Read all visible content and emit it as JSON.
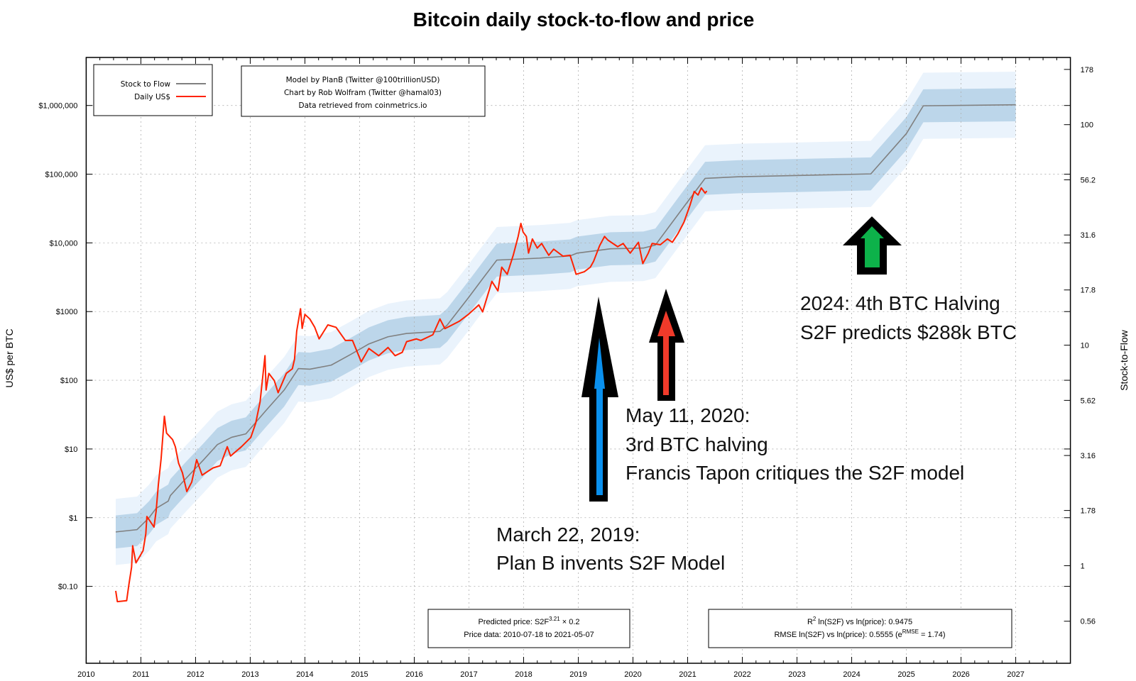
{
  "title": "Bitcoin daily stock-to-flow and price",
  "legend": {
    "model_label": "Stock to Flow",
    "price_label": "Daily US$"
  },
  "credits": [
    "Model by PlanB (Twitter @100trillionUSD)",
    "Chart by Rob Wolfram (Twitter @hamal03)",
    "Data retrieved from coinmetrics.io"
  ],
  "formula_box": {
    "line1_prefix": "Predicted price: S2F",
    "line1_sup": "3.21",
    "line1_suffix": " × 0.2",
    "line2": "Price data: 2010-07-18 to 2021-05-07"
  },
  "stats_box": {
    "line1_prefix": "R",
    "line1_sup": "2",
    "line1_suffix": " ln(S2F) vs ln(price): 0.9475",
    "line2_prefix": "RMSE ln(S2F) vs ln(price): 0.5555 (e",
    "line2_sup": "RMSE",
    "line2_suffix": " = 1.74)"
  },
  "annotations": {
    "halving_2024": [
      "2024: 4th BTC Halving",
      "S2F predicts $288k BTC"
    ],
    "halving_2020": [
      "May 11, 2020:",
      "3rd BTC halving",
      "Francis Tapon critiques the S2F model"
    ],
    "invented_2019": [
      "March 22, 2019:",
      "Plan B invents S2F Model"
    ]
  },
  "colors": {
    "model": "#808080",
    "price": "#ff2200",
    "band_inner": "#bcd6ea",
    "band_outer": "#eaf3fc",
    "arrow_blue": "#0a90ee",
    "arrow_red": "#f03a2a",
    "arrow_green": "#0db24a",
    "grid": "#b0b0b0"
  },
  "chart_data": {
    "type": "line",
    "title": "Bitcoin daily stock-to-flow and price",
    "xlabel": "",
    "ylabel": "US$ per BTC",
    "y2label": "Stock-to-Flow",
    "xlim": [
      2010,
      2028
    ],
    "ylim": [
      0.0076,
      5000000
    ],
    "yscale": "log",
    "grid": true,
    "legend": "top-left",
    "x_ticks": [
      "2010",
      "2011",
      "2012",
      "2013",
      "2014",
      "2015",
      "2016",
      "2017",
      "2018",
      "2019",
      "2020",
      "2021",
      "2022",
      "2023",
      "2024",
      "2025",
      "2026",
      "2027"
    ],
    "y_ticks": [
      {
        "value": 1000000,
        "label": "$1,000,000"
      },
      {
        "value": 100000,
        "label": "$100,000"
      },
      {
        "value": 10000,
        "label": "$10,000"
      },
      {
        "value": 1000,
        "label": "$1000"
      },
      {
        "value": 100,
        "label": "$100"
      },
      {
        "value": 10,
        "label": "$10"
      },
      {
        "value": 1,
        "label": "$1"
      },
      {
        "value": 0.1,
        "label": "$0.10"
      }
    ],
    "y2_ticks": [
      "178",
      "100",
      "56.2",
      "31.6",
      "17.8",
      "10",
      "5.62",
      "3.16",
      "1.78",
      "1",
      "0.56"
    ],
    "model_params": {
      "exponent": 3.21,
      "multiplier": 0.2,
      "e_rmse": 1.74
    },
    "series": [
      {
        "name": "Stock to Flow",
        "x": [
          2010.54,
          2010.93,
          2011.15,
          2011.28,
          2011.5,
          2011.54,
          2011.8,
          2012.15,
          2012.4,
          2012.66,
          2012.92,
          2013.27,
          2013.62,
          2013.88,
          2014.09,
          2014.48,
          2014.83,
          2015.17,
          2015.52,
          2015.86,
          2016.47,
          2016.6,
          2016.99,
          2017.25,
          2017.51,
          2018.29,
          2018.85,
          2018.98,
          2019.59,
          2020.19,
          2020.41,
          2020.88,
          2021.32,
          2021.92,
          2024.35,
          2025.0,
          2025.31,
          2027.0
        ],
        "y": [
          0.62,
          0.67,
          1.0,
          1.37,
          1.74,
          2.1,
          3.55,
          7,
          11.6,
          14.8,
          16.6,
          35,
          72,
          148,
          145,
          166,
          236,
          338,
          430,
          480,
          515,
          633,
          1590,
          3000,
          5620,
          6000,
          6460,
          7100,
          8200,
          8400,
          9300,
          29700,
          87000,
          91600,
          101000,
          390000,
          990000,
          1025000
        ]
      },
      {
        "name": "Daily US$",
        "x": [
          2010.54,
          2010.57,
          2010.74,
          2010.78,
          2010.83,
          2010.85,
          2010.91,
          2011.04,
          2011.09,
          2011.11,
          2011.24,
          2011.28,
          2011.32,
          2011.37,
          2011.43,
          2011.47,
          2011.58,
          2011.63,
          2011.69,
          2011.76,
          2011.84,
          2011.93,
          2012.02,
          2012.12,
          2012.32,
          2012.45,
          2012.58,
          2012.64,
          2012.84,
          2013.01,
          2013.1,
          2013.18,
          2013.27,
          2013.29,
          2013.34,
          2013.44,
          2013.51,
          2013.66,
          2013.77,
          2013.81,
          2013.85,
          2013.92,
          2013.95,
          2014.0,
          2014.09,
          2014.18,
          2014.26,
          2014.42,
          2014.57,
          2014.74,
          2014.87,
          2015.03,
          2015.17,
          2015.35,
          2015.52,
          2015.65,
          2015.78,
          2015.86,
          2016.04,
          2016.12,
          2016.34,
          2016.47,
          2016.56,
          2016.82,
          2016.99,
          2017.18,
          2017.25,
          2017.42,
          2017.53,
          2017.6,
          2017.7,
          2017.81,
          2017.9,
          2017.95,
          2017.99,
          2018.05,
          2018.09,
          2018.16,
          2018.25,
          2018.33,
          2018.46,
          2018.55,
          2018.72,
          2018.85,
          2018.92,
          2018.96,
          2019.11,
          2019.22,
          2019.28,
          2019.39,
          2019.48,
          2019.54,
          2019.72,
          2019.82,
          2019.95,
          2020.1,
          2020.18,
          2020.28,
          2020.35,
          2020.5,
          2020.63,
          2020.72,
          2020.82,
          2020.93,
          2021.04,
          2021.12,
          2021.19,
          2021.25,
          2021.32,
          2021.35
        ],
        "y": [
          0.086,
          0.06,
          0.062,
          0.105,
          0.19,
          0.39,
          0.22,
          0.33,
          0.58,
          1.04,
          0.73,
          1.27,
          3.05,
          7.2,
          30,
          17,
          13.7,
          10.8,
          6.2,
          4.5,
          2.4,
          3.3,
          7,
          4.16,
          5.3,
          5.7,
          10.8,
          7.9,
          10.8,
          14.7,
          23.7,
          48.5,
          228,
          72,
          126,
          99,
          66,
          126,
          147,
          202,
          520,
          1100,
          570,
          910,
          780,
          590,
          400,
          640,
          590,
          380,
          380,
          186,
          290,
          228,
          300,
          228,
          255,
          365,
          400,
          380,
          460,
          780,
          565,
          720,
          910,
          1250,
          990,
          2750,
          2000,
          4430,
          3490,
          6600,
          12400,
          19200,
          14400,
          12400,
          7100,
          11400,
          8400,
          9800,
          6600,
          8100,
          6400,
          6600,
          4430,
          3490,
          3800,
          4430,
          5400,
          9100,
          12400,
          11000,
          8800,
          9800,
          7100,
          10200,
          5000,
          7100,
          9800,
          9400,
          11400,
          10200,
          13500,
          19800,
          34800,
          56000,
          49700,
          63000,
          53000,
          57000
        ]
      }
    ]
  }
}
